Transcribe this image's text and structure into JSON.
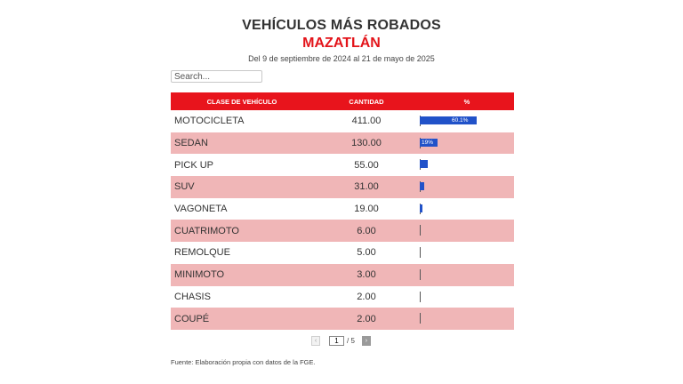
{
  "title": "VEHÍCULOS MÁS ROBADOS",
  "subtitle": "MAZATLÁN",
  "date_range": "Del 9 de septiembre de 2024 al 21 de mayo de 2025",
  "search": {
    "placeholder": "Search..."
  },
  "colors": {
    "header_bg": "#e8141c",
    "row_alt_bg": "#f0b6b7",
    "bar": "#2152c9",
    "subtitle": "#e3141a"
  },
  "chart_data": {
    "type": "table",
    "columns": [
      "CLASE DE VEHÍCULO",
      "CANTIDAD",
      "%"
    ],
    "rows": [
      {
        "vehicle": "MOTOCICLETA",
        "quantity": "411.00",
        "percent": 60.1,
        "percent_label": "60.1%"
      },
      {
        "vehicle": "SEDAN",
        "quantity": "130.00",
        "percent": 19.0,
        "percent_label": "19%"
      },
      {
        "vehicle": "PICK UP",
        "quantity": "55.00",
        "percent": 8.0,
        "percent_label": ""
      },
      {
        "vehicle": "SUV",
        "quantity": "31.00",
        "percent": 4.5,
        "percent_label": ""
      },
      {
        "vehicle": "VAGONETA",
        "quantity": "19.00",
        "percent": 2.8,
        "percent_label": ""
      },
      {
        "vehicle": "CUATRIMOTO",
        "quantity": "6.00",
        "percent": 0.9,
        "percent_label": ""
      },
      {
        "vehicle": "REMOLQUE",
        "quantity": "5.00",
        "percent": 0.7,
        "percent_label": ""
      },
      {
        "vehicle": "MINIMOTO",
        "quantity": "3.00",
        "percent": 0.4,
        "percent_label": ""
      },
      {
        "vehicle": "CHASIS",
        "quantity": "2.00",
        "percent": 0.3,
        "percent_label": ""
      },
      {
        "vehicle": "COUPÉ",
        "quantity": "2.00",
        "percent": 0.3,
        "percent_label": ""
      }
    ],
    "percent_max": 100
  },
  "pagination": {
    "current": "1",
    "total_label": "/ 5",
    "prev": "‹",
    "next": "›"
  },
  "source": "Fuente: Elaboración propia con datos de la FGE."
}
